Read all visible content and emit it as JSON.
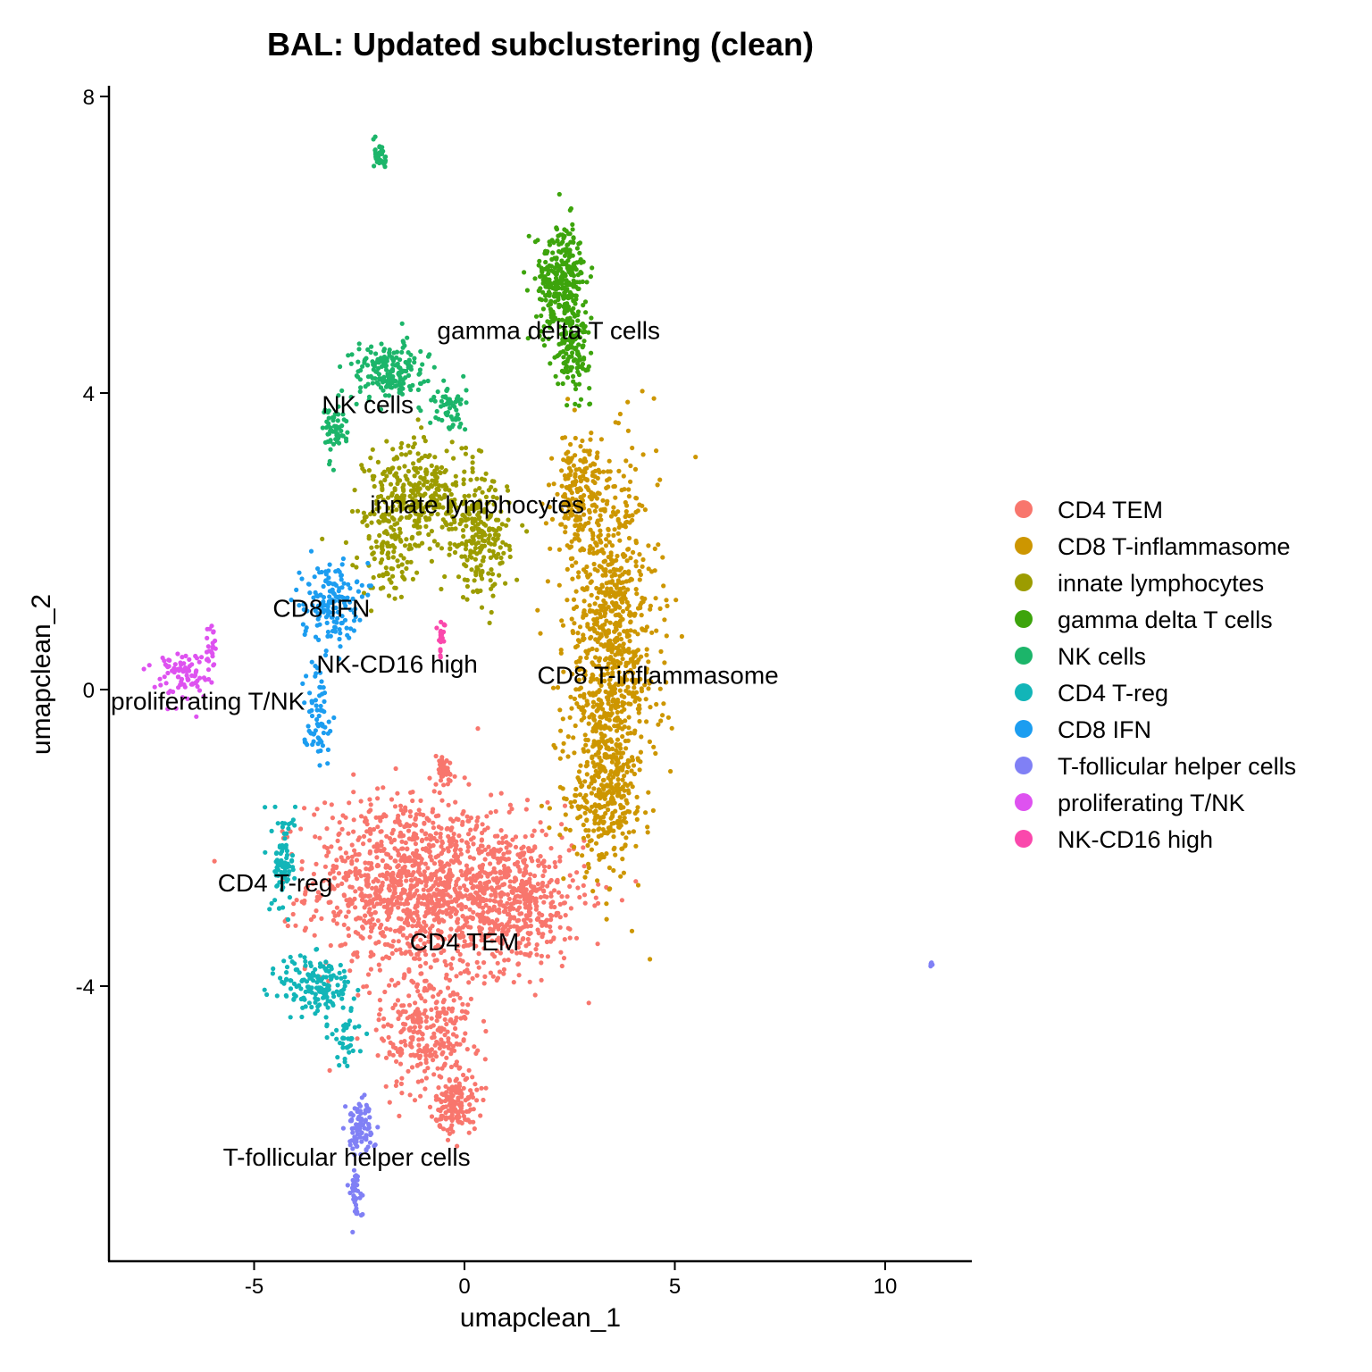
{
  "chart_data": {
    "type": "scatter",
    "title": "BAL: Updated subclustering (clean)",
    "xlabel": "umapclean_1",
    "ylabel": "umapclean_2",
    "xlim": [
      -8.5,
      12
    ],
    "ylim": [
      -7.7,
      8.2
    ],
    "xticks": [
      -5,
      0,
      5,
      10
    ],
    "yticks": [
      -4,
      0,
      4,
      8
    ],
    "xtick_labels": [
      "-5",
      "0",
      "5",
      "10"
    ],
    "ytick_labels": [
      "-4",
      "0",
      "4",
      "8"
    ],
    "grid": false,
    "legend_position": "right",
    "series": [
      {
        "name": "CD4 TEM",
        "color": "#F8766D",
        "clusters": [
          [
            -1.5,
            -2.6,
            2.0,
            1.1,
            900
          ],
          [
            0.9,
            -2.8,
            1.8,
            0.9,
            700
          ],
          [
            -0.9,
            -4.6,
            1.0,
            0.8,
            300
          ],
          [
            -0.2,
            -5.6,
            0.45,
            0.35,
            140
          ],
          [
            -0.5,
            -1.1,
            0.25,
            0.2,
            40
          ]
        ]
      },
      {
        "name": "CD8 T-inflammasome",
        "color": "#CD9600",
        "clusters": [
          [
            3.5,
            0.5,
            1.0,
            2.2,
            900
          ],
          [
            3.3,
            -1.4,
            0.7,
            0.9,
            250
          ],
          [
            2.7,
            2.6,
            0.5,
            0.8,
            180
          ]
        ]
      },
      {
        "name": "innate lymphocytes",
        "color": "#7CAE00",
        "clusters": [
          [
            -1.0,
            2.6,
            1.2,
            0.7,
            350
          ],
          [
            0.4,
            2.0,
            0.6,
            0.7,
            200
          ],
          [
            -1.8,
            1.9,
            0.6,
            0.6,
            100
          ]
        ]
      },
      {
        "name": "gamma delta T cells",
        "color": "#00A9FF",
        "clusters": [
          [
            2.3,
            5.5,
            0.55,
            0.7,
            300
          ],
          [
            2.6,
            4.6,
            0.35,
            0.5,
            120
          ]
        ]
      },
      {
        "name": "NK cells",
        "color": "#00BE67",
        "clusters": [
          [
            -1.8,
            4.3,
            0.8,
            0.35,
            180
          ],
          [
            -3.1,
            3.5,
            0.25,
            0.35,
            60
          ],
          [
            -0.4,
            3.8,
            0.4,
            0.3,
            60
          ],
          [
            -2.0,
            7.2,
            0.12,
            0.2,
            40
          ]
        ]
      },
      {
        "name": "CD4 T-reg",
        "color": "#00BFC4",
        "clusters": [
          [
            -4.3,
            -2.3,
            0.25,
            0.6,
            90
          ],
          [
            -3.5,
            -4.0,
            0.8,
            0.4,
            160
          ],
          [
            -2.8,
            -4.7,
            0.35,
            0.35,
            40
          ]
        ]
      },
      {
        "name": "CD8 IFN",
        "color": "#00A9FF",
        "clusters": [
          [
            -3.2,
            1.2,
            0.6,
            0.5,
            150
          ],
          [
            -3.5,
            -0.3,
            0.3,
            0.6,
            70
          ]
        ]
      },
      {
        "name": "T-follicular helper cells",
        "color": "#8494FF",
        "clusters": [
          [
            -2.5,
            -5.9,
            0.3,
            0.35,
            90
          ],
          [
            -2.6,
            -6.8,
            0.15,
            0.3,
            40
          ],
          [
            11.1,
            -3.7,
            0.03,
            0.04,
            8
          ]
        ]
      },
      {
        "name": "proliferating T/NK",
        "color": "#E76BF3",
        "clusters": [
          [
            -6.7,
            0.2,
            0.6,
            0.3,
            90
          ],
          [
            -6.0,
            0.6,
            0.15,
            0.3,
            20
          ]
        ]
      },
      {
        "name": "NK-CD16 high",
        "color": "#FF62BC",
        "clusters": [
          [
            -0.55,
            0.7,
            0.08,
            0.2,
            25
          ]
        ]
      }
    ],
    "cluster_labels": [
      {
        "text": "gamma delta T cells",
        "x": 2.0,
        "y": 4.85
      },
      {
        "text": "NK cells",
        "x": -2.3,
        "y": 3.85
      },
      {
        "text": "innate lymphocytes",
        "x": 0.3,
        "y": 2.5
      },
      {
        "text": "CD8 IFN",
        "x": -3.4,
        "y": 1.1
      },
      {
        "text": "NK-CD16 high",
        "x": -1.6,
        "y": 0.35
      },
      {
        "text": "CD8 T-inflammasome",
        "x": 4.6,
        "y": 0.2
      },
      {
        "text": "proliferating T/NK",
        "x": -6.1,
        "y": -0.15
      },
      {
        "text": "CD4 T-reg",
        "x": -4.5,
        "y": -2.6
      },
      {
        "text": "CD4 TEM",
        "x": 0.0,
        "y": -3.4
      },
      {
        "text": "T-follicular helper cells",
        "x": -2.8,
        "y": -6.3
      }
    ]
  },
  "legend": {
    "items": [
      {
        "label": "CD4 TEM",
        "color": "#F8766D"
      },
      {
        "label": "CD8 T-inflammasome",
        "color": "#CD9600"
      },
      {
        "label": "innate lymphocytes",
        "color": "#9C9C00"
      },
      {
        "label": "gamma delta T cells",
        "color": "#3DA40C"
      },
      {
        "label": "NK cells",
        "color": "#1CB56A"
      },
      {
        "label": "CD4 T-reg",
        "color": "#12B5B8"
      },
      {
        "label": "CD8 IFN",
        "color": "#1C9DF0"
      },
      {
        "label": "T-follicular helper cells",
        "color": "#8080F5"
      },
      {
        "label": "proliferating T/NK",
        "color": "#DE52F0"
      },
      {
        "label": "NK-CD16 high",
        "color": "#FA48AC"
      }
    ]
  }
}
